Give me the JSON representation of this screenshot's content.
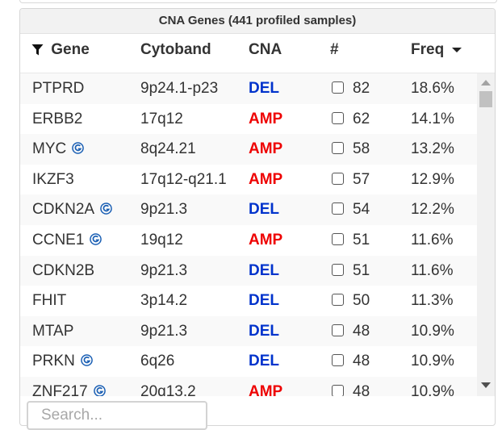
{
  "panel": {
    "title": "CNA Genes (441 profiled samples)"
  },
  "columns": {
    "gene": "Gene",
    "cytoband": "Cytoband",
    "cna": "CNA",
    "count": "#",
    "freq": "Freq"
  },
  "rows": [
    {
      "gene": "PTPRD",
      "g": false,
      "cytoband": "9p24.1-p23",
      "cna": "DEL",
      "count": "82",
      "freq": "18.6%"
    },
    {
      "gene": "ERBB2",
      "g": false,
      "cytoband": "17q12",
      "cna": "AMP",
      "count": "62",
      "freq": "14.1%"
    },
    {
      "gene": "MYC",
      "g": true,
      "cytoband": "8q24.21",
      "cna": "AMP",
      "count": "58",
      "freq": "13.2%"
    },
    {
      "gene": "IKZF3",
      "g": false,
      "cytoband": "17q12-q21.1",
      "cna": "AMP",
      "count": "57",
      "freq": "12.9%"
    },
    {
      "gene": "CDKN2A",
      "g": true,
      "cytoband": "9p21.3",
      "cna": "DEL",
      "count": "54",
      "freq": "12.2%"
    },
    {
      "gene": "CCNE1",
      "g": true,
      "cytoband": "19q12",
      "cna": "AMP",
      "count": "51",
      "freq": "11.6%"
    },
    {
      "gene": "CDKN2B",
      "g": false,
      "cytoband": "9p21.3",
      "cna": "DEL",
      "count": "51",
      "freq": "11.6%"
    },
    {
      "gene": "FHIT",
      "g": false,
      "cytoband": "3p14.2",
      "cna": "DEL",
      "count": "50",
      "freq": "11.3%"
    },
    {
      "gene": "MTAP",
      "g": false,
      "cytoband": "9p21.3",
      "cna": "DEL",
      "count": "48",
      "freq": "10.9%"
    },
    {
      "gene": "PRKN",
      "g": true,
      "cytoband": "6q26",
      "cna": "DEL",
      "count": "48",
      "freq": "10.9%"
    },
    {
      "gene": "ZNF217",
      "g": true,
      "cytoband": "20q13.2",
      "cna": "AMP",
      "count": "48",
      "freq": "10.9%"
    }
  ],
  "search": {
    "placeholder": "Search..."
  },
  "icons": {
    "filter": "filter-icon",
    "sort": "sort-desc-icon",
    "gene_badge": "oncokb-g-icon",
    "checkbox": "checkbox-icon"
  },
  "colors": {
    "del": "#0033cc",
    "amp": "#ee0000",
    "badge": "#1a5fb4"
  }
}
